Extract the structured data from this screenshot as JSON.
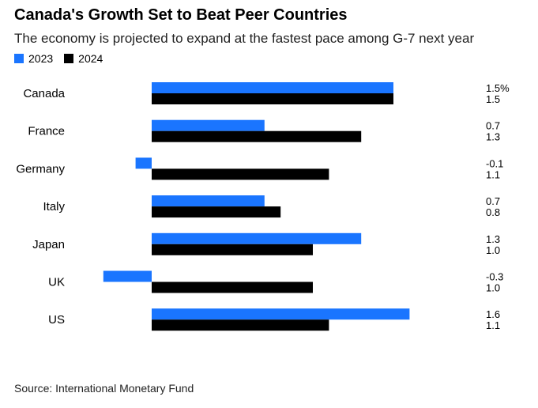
{
  "title": "Canada's Growth Set to Beat Peer Countries",
  "subtitle": "The economy is projected to expand at the fastest pace among G-7 next year",
  "source": "Source: International Monetary Fund",
  "colors": {
    "series_2023": "#1a75ff",
    "series_2024": "#000000"
  },
  "chart_data": {
    "type": "bar",
    "orientation": "horizontal",
    "categories": [
      "Canada",
      "France",
      "Germany",
      "Italy",
      "Japan",
      "UK",
      "US"
    ],
    "series": [
      {
        "name": "2023",
        "values": [
          1.5,
          0.7,
          -0.1,
          0.7,
          1.3,
          -0.3,
          1.6
        ],
        "labels": [
          "1.5%",
          "0.7",
          "-0.1",
          "0.7",
          "1.3",
          "-0.3",
          "1.6"
        ]
      },
      {
        "name": "2024",
        "values": [
          1.5,
          1.3,
          1.1,
          0.8,
          1.0,
          1.0,
          1.1
        ],
        "labels": [
          "1.5",
          "1.3",
          "1.1",
          "0.8",
          "1.0",
          "1.0",
          "1.1"
        ]
      }
    ],
    "xlim": [
      -0.3,
      1.6
    ],
    "legend_position": "top-left",
    "grid": false
  }
}
